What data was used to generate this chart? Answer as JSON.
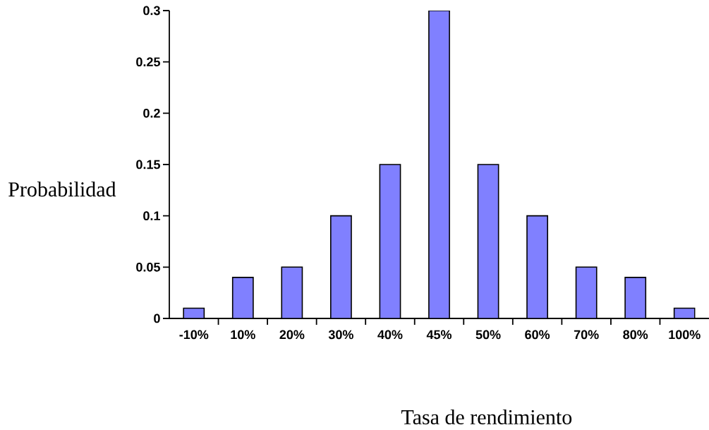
{
  "chart_data": {
    "type": "bar",
    "xlabel": "Tasa de rendimiento",
    "ylabel": "Probabilidad",
    "categories": [
      "-10%",
      "10%",
      "20%",
      "30%",
      "40%",
      "45%",
      "50%",
      "60%",
      "70%",
      "80%",
      "100%"
    ],
    "values": [
      0.01,
      0.04,
      0.05,
      0.1,
      0.15,
      0.3,
      0.15,
      0.1,
      0.05,
      0.04,
      0.01
    ],
    "color": "#8080ff",
    "ylim": [
      0,
      0.3
    ],
    "yticks": [
      0,
      0.05,
      0.1,
      0.15,
      0.2,
      0.25,
      0.3
    ]
  }
}
